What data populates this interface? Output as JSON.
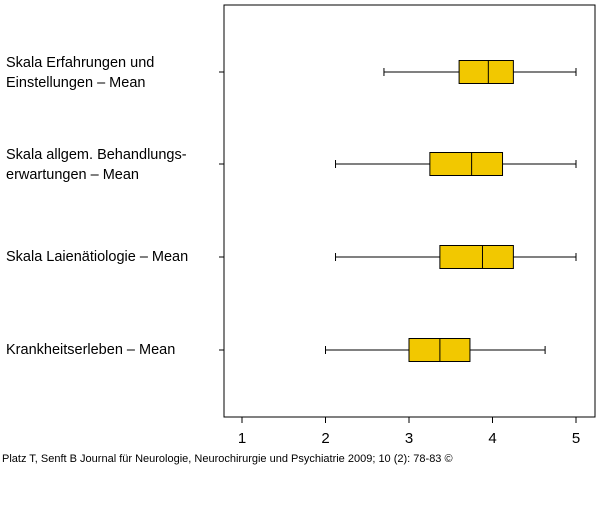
{
  "chart_data": {
    "type": "boxplot",
    "orientation": "horizontal",
    "categories": [
      [
        "Skala Erfahrungen und",
        "Einstellungen  –  Mean"
      ],
      [
        "Skala allgem. Behandlungs-",
        "erwartungen  –  Mean"
      ],
      [
        "Skala Laienätiologie  –  Mean"
      ],
      [
        "Krankheitserleben  –  Mean"
      ]
    ],
    "boxes": [
      {
        "whisker_low": 2.7,
        "q1": 3.6,
        "median": 3.95,
        "q3": 4.25,
        "whisker_high": 5.0
      },
      {
        "whisker_low": 2.12,
        "q1": 3.25,
        "median": 3.75,
        "q3": 4.12,
        "whisker_high": 5.0
      },
      {
        "whisker_low": 2.12,
        "q1": 3.37,
        "median": 3.88,
        "q3": 4.25,
        "whisker_high": 5.0
      },
      {
        "whisker_low": 2.0,
        "q1": 3.0,
        "median": 3.37,
        "q3": 3.73,
        "whisker_high": 4.63
      }
    ],
    "x_ticks": [
      1,
      2,
      3,
      4,
      5
    ],
    "xlim": [
      0.8,
      5.2
    ],
    "box_color": "#f2c800",
    "grid": false
  },
  "source_text": "Platz T, Senft B Journal für Neurologie, Neurochirurgie und Psychiatrie 2009; 10 (2): 78-83 ©"
}
